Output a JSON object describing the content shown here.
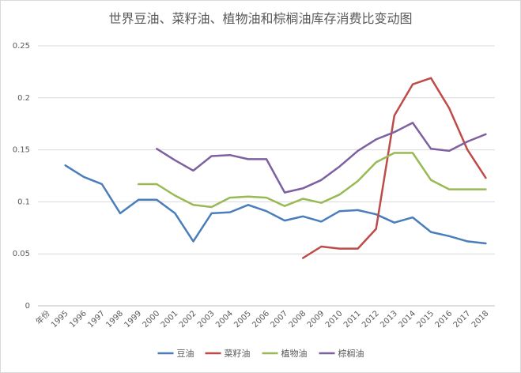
{
  "chart_data": {
    "type": "line",
    "title": "世界豆油、菜籽油、植物油和棕榈油库存消费比变动图",
    "xlabel": "",
    "ylabel": "",
    "x_first_label": "年份",
    "categories": [
      "1995",
      "1996",
      "1997",
      "1998",
      "1999",
      "2000",
      "2001",
      "2002",
      "2003",
      "2004",
      "2005",
      "2006",
      "2007",
      "2008",
      "2009",
      "2010",
      "2011",
      "2012",
      "2013",
      "2014",
      "2015",
      "2016",
      "2017",
      "2018"
    ],
    "ylim": [
      0,
      0.25
    ],
    "yticks": [
      "0",
      "0.05",
      "0.1",
      "0.15",
      "0.2",
      "0.25"
    ],
    "grid": "horizontal",
    "legend_position": "bottom",
    "series": [
      {
        "name": "豆油",
        "color": "#4a7ebb",
        "values": [
          0.135,
          0.124,
          0.117,
          0.089,
          0.102,
          0.102,
          0.089,
          0.062,
          0.089,
          0.09,
          0.097,
          0.091,
          0.082,
          0.086,
          0.081,
          0.091,
          0.092,
          0.088,
          0.08,
          0.085,
          0.071,
          0.067,
          0.062,
          0.06
        ]
      },
      {
        "name": "菜籽油",
        "color": "#be4b48",
        "values": [
          null,
          null,
          null,
          null,
          null,
          null,
          null,
          null,
          null,
          null,
          null,
          null,
          null,
          0.046,
          0.057,
          0.055,
          0.055,
          0.074,
          0.183,
          0.213,
          0.219,
          0.19,
          0.15,
          0.123
        ]
      },
      {
        "name": "植物油",
        "color": "#98b954",
        "values": [
          null,
          null,
          null,
          null,
          0.117,
          0.117,
          0.106,
          0.097,
          0.095,
          0.104,
          0.105,
          0.104,
          0.096,
          0.103,
          0.099,
          0.107,
          0.12,
          0.138,
          0.147,
          0.147,
          0.121,
          0.112,
          0.112,
          0.112
        ]
      },
      {
        "name": "棕榈油",
        "color": "#7d60a0",
        "values": [
          null,
          null,
          null,
          null,
          null,
          0.151,
          0.14,
          0.13,
          0.144,
          0.145,
          0.141,
          0.141,
          0.109,
          0.113,
          0.121,
          0.134,
          0.149,
          0.16,
          0.167,
          0.176,
          0.151,
          0.149,
          0.158,
          0.165
        ]
      }
    ]
  }
}
